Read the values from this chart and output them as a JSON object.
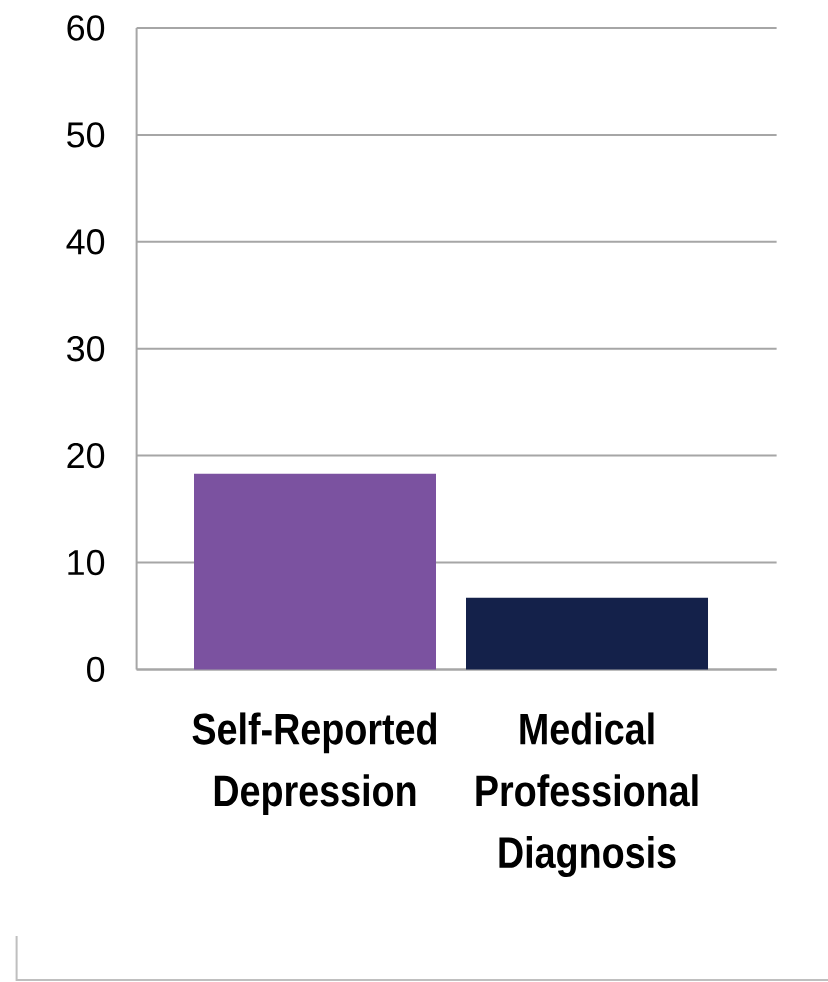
{
  "chart_data": {
    "type": "bar",
    "categories": [
      "Self-Reported Depression",
      "Medical Professional Diagnosis"
    ],
    "values": [
      18.3,
      6.7
    ],
    "colors": [
      "#7b52a0",
      "#14214a"
    ],
    "ylim": [
      0,
      60
    ],
    "yticks": [
      0,
      10,
      20,
      30,
      40,
      50,
      60
    ],
    "grid": "y"
  }
}
